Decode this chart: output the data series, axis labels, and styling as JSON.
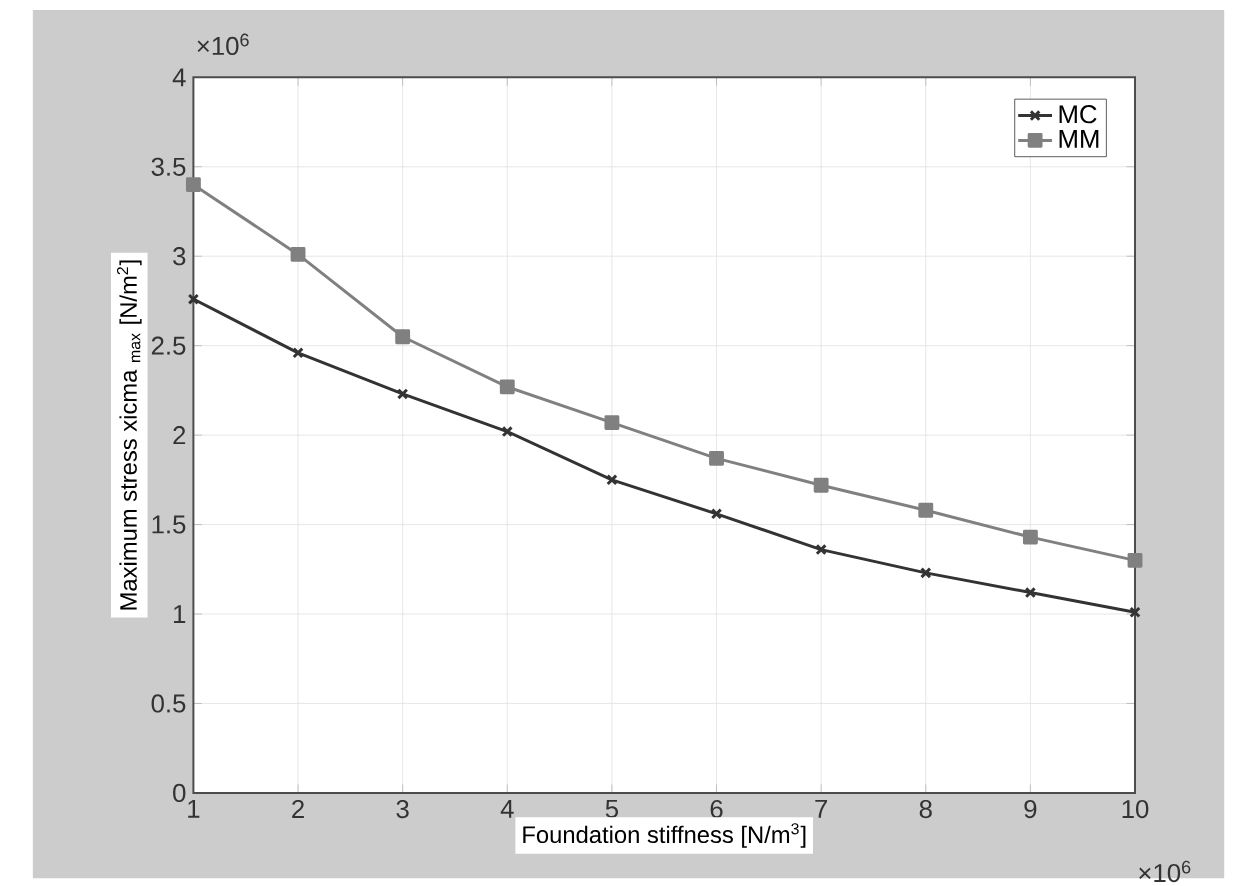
{
  "chart_data": {
    "type": "line",
    "xlabel": "Foundation stiffness [N/m$^{3}$]",
    "ylabel": "Maximum stress xicma $_{max}$ [N/m$^{2}$]",
    "annotations": [
      "×10$^{6}$",
      "×10$^{6}$"
    ],
    "x": [
      1,
      2,
      3,
      4,
      5,
      6,
      7,
      8,
      9,
      10
    ],
    "series": [
      {
        "name": "MC",
        "color": "#333333",
        "marker": "cross",
        "values": [
          2.76,
          2.46,
          2.23,
          2.02,
          1.75,
          1.56,
          1.36,
          1.23,
          1.12,
          1.01
        ]
      },
      {
        "name": "MM",
        "color": "#808080",
        "marker": "square",
        "values": [
          3.4,
          3.01,
          2.55,
          2.27,
          2.07,
          1.87,
          1.72,
          1.58,
          1.43,
          1.3
        ]
      }
    ],
    "xlim": [
      1,
      10
    ],
    "ylim": [
      0,
      4
    ],
    "xticks": [
      1,
      2,
      3,
      4,
      5,
      6,
      7,
      8,
      9,
      10
    ],
    "yticks": [
      0,
      0.5,
      1,
      1.5,
      2,
      2.5,
      3,
      3.5,
      4
    ],
    "grid": true,
    "legend": "top right",
    "line_style": "solid"
  }
}
